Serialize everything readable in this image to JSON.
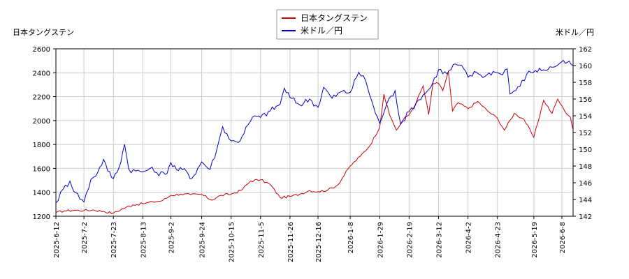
{
  "chart_data": {
    "type": "line",
    "title": "",
    "legend": {
      "placement": "top-center",
      "entries": [
        {
          "name": "日本タングステン",
          "color": "#cc0000"
        },
        {
          "name": "米ドル／円",
          "color": "#0000cc"
        }
      ]
    },
    "y_left": {
      "label": "日本タングステン",
      "ylim": [
        1200,
        2600
      ],
      "ticks": [
        "1200",
        "1400",
        "1600",
        "1800",
        "2000",
        "2200",
        "2400",
        "2600"
      ],
      "tick_values": [
        1200,
        1400,
        1600,
        1800,
        2000,
        2200,
        2400,
        2600
      ],
      "tick_color": "#cc0000"
    },
    "y_right": {
      "label": "米ドル／円",
      "ylim": [
        142,
        162
      ],
      "ticks": [
        "142",
        "144",
        "146",
        "148",
        "150",
        "152",
        "154",
        "156",
        "158",
        "160",
        "162"
      ],
      "tick_values": [
        142,
        144,
        146,
        148,
        150,
        152,
        154,
        156,
        158,
        160,
        162
      ],
      "tick_color": "#0000cc"
    },
    "x_axis": {
      "range": [
        "2025-06-12",
        "2026-06-16"
      ],
      "ticks": [
        "2025-6-12",
        "2025-7-2",
        "2025-7-23",
        "2025-8-13",
        "2025-9-2",
        "2025-9-24",
        "2025-10-15",
        "2025-11-5",
        "2025-11-26",
        "2025-12-16",
        "2026-1-8",
        "2026-1-29",
        "2026-2-19",
        "2026-3-12",
        "2026-4-2",
        "2026-4-23",
        "2026-5-19",
        "2026-6-8"
      ],
      "tick_dates": [
        "2025-06-12",
        "2025-07-02",
        "2025-07-23",
        "2025-08-13",
        "2025-09-02",
        "2025-09-24",
        "2025-10-15",
        "2025-11-05",
        "2025-11-26",
        "2025-12-16",
        "2026-01-08",
        "2026-01-29",
        "2026-02-19",
        "2026-03-12",
        "2026-04-02",
        "2026-04-23",
        "2026-05-19",
        "2026-06-08"
      ]
    },
    "grid": true,
    "series": [
      {
        "name": "日本タングステン",
        "axis": "left",
        "color": "#cc0000",
        "points": [
          [
            "2025-06-12",
            1230
          ],
          [
            "2025-06-18",
            1245
          ],
          [
            "2025-06-25",
            1250
          ],
          [
            "2025-07-02",
            1248
          ],
          [
            "2025-07-09",
            1252
          ],
          [
            "2025-07-16",
            1240
          ],
          [
            "2025-07-23",
            1225
          ],
          [
            "2025-07-30",
            1265
          ],
          [
            "2025-08-06",
            1295
          ],
          [
            "2025-08-13",
            1305
          ],
          [
            "2025-08-20",
            1320
          ],
          [
            "2025-08-27",
            1330
          ],
          [
            "2025-09-02",
            1375
          ],
          [
            "2025-09-09",
            1385
          ],
          [
            "2025-09-16",
            1380
          ],
          [
            "2025-09-24",
            1382
          ],
          [
            "2025-10-01",
            1335
          ],
          [
            "2025-10-08",
            1375
          ],
          [
            "2025-10-15",
            1385
          ],
          [
            "2025-10-22",
            1415
          ],
          [
            "2025-10-29",
            1495
          ],
          [
            "2025-11-05",
            1505
          ],
          [
            "2025-11-12",
            1465
          ],
          [
            "2025-11-19",
            1355
          ],
          [
            "2025-11-26",
            1365
          ],
          [
            "2025-12-03",
            1385
          ],
          [
            "2025-12-10",
            1415
          ],
          [
            "2025-12-16",
            1405
          ],
          [
            "2025-12-23",
            1420
          ],
          [
            "2025-12-30",
            1460
          ],
          [
            "2026-01-08",
            1620
          ],
          [
            "2026-01-15",
            1700
          ],
          [
            "2026-01-22",
            1790
          ],
          [
            "2026-01-29",
            1945
          ],
          [
            "2026-02-01",
            2220
          ],
          [
            "2026-02-05",
            2050
          ],
          [
            "2026-02-10",
            1920
          ],
          [
            "2026-02-15",
            2010
          ],
          [
            "2026-02-19",
            2050
          ],
          [
            "2026-02-24",
            2150
          ],
          [
            "2026-03-01",
            2290
          ],
          [
            "2026-03-05",
            2050
          ],
          [
            "2026-03-08",
            2310
          ],
          [
            "2026-03-12",
            2310
          ],
          [
            "2026-03-15",
            2250
          ],
          [
            "2026-03-19",
            2410
          ],
          [
            "2026-03-22",
            2080
          ],
          [
            "2026-03-26",
            2150
          ],
          [
            "2026-04-02",
            2100
          ],
          [
            "2026-04-09",
            2160
          ],
          [
            "2026-04-16",
            2080
          ],
          [
            "2026-04-23",
            2020
          ],
          [
            "2026-04-28",
            1920
          ],
          [
            "2026-05-05",
            2060
          ],
          [
            "2026-05-12",
            2010
          ],
          [
            "2026-05-19",
            1860
          ],
          [
            "2026-05-26",
            2170
          ],
          [
            "2026-06-01",
            2060
          ],
          [
            "2026-06-05",
            2180
          ],
          [
            "2026-06-10",
            2080
          ],
          [
            "2026-06-14",
            2030
          ],
          [
            "2026-06-16",
            1920
          ]
        ]
      },
      {
        "name": "米ドル／円",
        "axis": "right",
        "color": "#0000cc",
        "points": [
          [
            "2025-06-12",
            143.6
          ],
          [
            "2025-06-17",
            145.2
          ],
          [
            "2025-06-22",
            146.2
          ],
          [
            "2025-06-26",
            144.8
          ],
          [
            "2025-07-02",
            143.7
          ],
          [
            "2025-07-07",
            146.4
          ],
          [
            "2025-07-12",
            147.3
          ],
          [
            "2025-07-16",
            148.8
          ],
          [
            "2025-07-19",
            147.4
          ],
          [
            "2025-07-23",
            146.5
          ],
          [
            "2025-07-27",
            147.8
          ],
          [
            "2025-07-31",
            150.6
          ],
          [
            "2025-08-03",
            147.6
          ],
          [
            "2025-08-08",
            147.4
          ],
          [
            "2025-08-13",
            147.3
          ],
          [
            "2025-08-18",
            147.7
          ],
          [
            "2025-08-23",
            147.2
          ],
          [
            "2025-08-29",
            147.0
          ],
          [
            "2025-09-02",
            148.4
          ],
          [
            "2025-09-06",
            147.6
          ],
          [
            "2025-09-13",
            147.4
          ],
          [
            "2025-09-17",
            146.5
          ],
          [
            "2025-09-24",
            148.5
          ],
          [
            "2025-09-30",
            147.6
          ],
          [
            "2025-10-05",
            150.1
          ],
          [
            "2025-10-09",
            152.7
          ],
          [
            "2025-10-15",
            151.0
          ],
          [
            "2025-10-20",
            150.8
          ],
          [
            "2025-10-27",
            152.9
          ],
          [
            "2025-11-01",
            154.0
          ],
          [
            "2025-11-05",
            153.8
          ],
          [
            "2025-11-12",
            154.6
          ],
          [
            "2025-11-19",
            155.4
          ],
          [
            "2025-11-22",
            157.3
          ],
          [
            "2025-11-26",
            156.2
          ],
          [
            "2025-12-03",
            155.3
          ],
          [
            "2025-12-10",
            156.0
          ],
          [
            "2025-12-16",
            155.0
          ],
          [
            "2025-12-20",
            157.4
          ],
          [
            "2025-12-26",
            156.1
          ],
          [
            "2026-01-02",
            156.9
          ],
          [
            "2026-01-08",
            156.8
          ],
          [
            "2026-01-14",
            159.2
          ],
          [
            "2026-01-19",
            158.2
          ],
          [
            "2026-01-26",
            154.3
          ],
          [
            "2026-01-29",
            153.1
          ],
          [
            "2026-02-03",
            155.4
          ],
          [
            "2026-02-09",
            157.0
          ],
          [
            "2026-02-13",
            153.0
          ],
          [
            "2026-02-19",
            154.5
          ],
          [
            "2026-02-24",
            155.5
          ],
          [
            "2026-03-01",
            156.5
          ],
          [
            "2026-03-06",
            157.3
          ],
          [
            "2026-03-12",
            159.5
          ],
          [
            "2026-03-18",
            159.0
          ],
          [
            "2026-03-24",
            160.2
          ],
          [
            "2026-03-30",
            159.6
          ],
          [
            "2026-04-02",
            158.6
          ],
          [
            "2026-04-08",
            159.2
          ],
          [
            "2026-04-14",
            158.7
          ],
          [
            "2026-04-20",
            159.3
          ],
          [
            "2026-04-25",
            159.0
          ],
          [
            "2026-04-30",
            159.6
          ],
          [
            "2026-05-02",
            156.6
          ],
          [
            "2026-05-09",
            157.5
          ],
          [
            "2026-05-14",
            159.0
          ],
          [
            "2026-05-20",
            159.4
          ],
          [
            "2026-05-26",
            159.5
          ],
          [
            "2026-06-01",
            159.8
          ],
          [
            "2026-06-06",
            160.2
          ],
          [
            "2026-06-12",
            160.4
          ],
          [
            "2026-06-16",
            160.0
          ]
        ]
      }
    ]
  }
}
